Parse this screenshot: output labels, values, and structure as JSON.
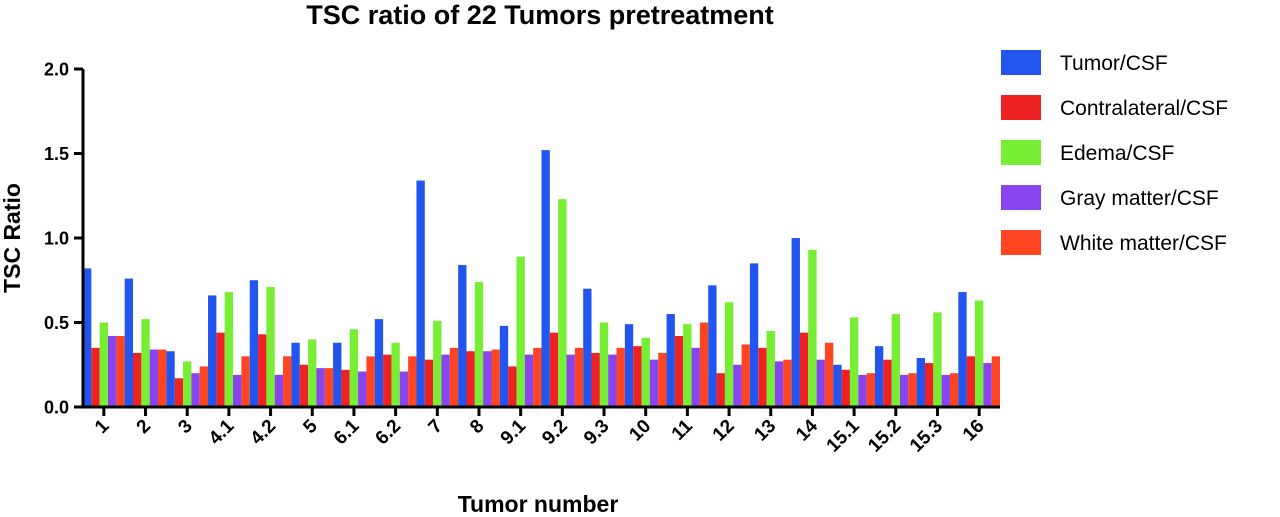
{
  "chart_data": {
    "type": "bar",
    "title": "TSC ratio of 22 Tumors pretreatment",
    "xlabel": "Tumor number",
    "ylabel": "TSC Ratio",
    "ylim": [
      0,
      2.0
    ],
    "yticks": [
      "0.0",
      "0.5",
      "1.0",
      "1.5",
      "2.0"
    ],
    "ytick_values": [
      0,
      0.5,
      1.0,
      1.5,
      2.0
    ],
    "legend_position": "right",
    "categories": [
      "1",
      "2",
      "3",
      "4.1",
      "4.2",
      "5",
      "6.1",
      "6.2",
      "7",
      "8",
      "9.1",
      "9.2",
      "9.3",
      "10",
      "11",
      "12",
      "13",
      "14",
      "15.1",
      "15.2",
      "15.3",
      "16"
    ],
    "series": [
      {
        "name": "Tumor/CSF",
        "color": "#2255ee",
        "values": [
          0.82,
          0.76,
          0.33,
          0.66,
          0.75,
          0.38,
          0.38,
          0.52,
          1.34,
          0.84,
          0.48,
          1.52,
          0.7,
          0.49,
          0.55,
          0.72,
          0.85,
          1.0,
          0.25,
          0.36,
          0.29,
          0.68
        ]
      },
      {
        "name": "Contralateral/CSF",
        "color": "#ee2222",
        "values": [
          0.35,
          0.32,
          0.17,
          0.44,
          0.43,
          0.25,
          0.22,
          0.31,
          0.28,
          0.33,
          0.24,
          0.44,
          0.32,
          0.36,
          0.42,
          0.2,
          0.35,
          0.44,
          0.22,
          0.28,
          0.26,
          0.3
        ]
      },
      {
        "name": "Edema/CSF",
        "color": "#77ee33",
        "values": [
          0.5,
          0.52,
          0.27,
          0.68,
          0.71,
          0.4,
          0.46,
          0.38,
          0.51,
          0.74,
          0.89,
          1.23,
          0.5,
          0.41,
          0.49,
          0.62,
          0.45,
          0.93,
          0.53,
          0.55,
          0.56,
          0.63
        ]
      },
      {
        "name": "Gray matter/CSF",
        "color": "#8844ee",
        "values": [
          0.42,
          0.34,
          0.2,
          0.19,
          0.19,
          0.23,
          0.21,
          0.21,
          0.31,
          0.33,
          0.31,
          0.31,
          0.31,
          0.28,
          0.35,
          0.25,
          0.27,
          0.28,
          0.19,
          0.19,
          0.19,
          0.26
        ]
      },
      {
        "name": "White matter/CSF",
        "color": "#ff4422",
        "values": [
          0.42,
          0.34,
          0.24,
          0.3,
          0.3,
          0.23,
          0.3,
          0.3,
          0.35,
          0.34,
          0.35,
          0.35,
          0.35,
          0.32,
          0.5,
          0.37,
          0.28,
          0.38,
          0.2,
          0.2,
          0.2,
          0.3
        ]
      }
    ]
  }
}
